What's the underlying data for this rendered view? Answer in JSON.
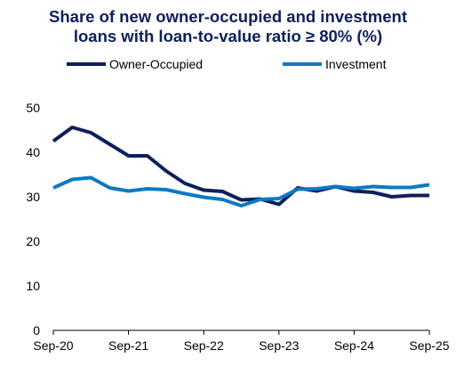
{
  "chart_data": {
    "type": "line",
    "title_lines": [
      "Share of new owner-occupied and investment",
      "loans with loan-to-value ratio ≥ 80% (%)"
    ],
    "xlabel": "",
    "ylabel": "",
    "ylim": [
      0,
      50
    ],
    "yticks": [
      "0",
      "10",
      "20",
      "30",
      "40",
      "50"
    ],
    "x_tick_labels": [
      "Sep-20",
      "Sep-21",
      "Sep-22",
      "Sep-23",
      "Sep-24",
      "Sep-25"
    ],
    "x": [
      "Sep-20",
      "Dec-20",
      "Mar-21",
      "Jun-21",
      "Sep-21",
      "Dec-21",
      "Mar-22",
      "Jun-22",
      "Sep-22",
      "Dec-22",
      "Mar-23",
      "Jun-23",
      "Sep-23",
      "Dec-23",
      "Mar-24",
      "Jun-24",
      "Sep-24",
      "Dec-24",
      "Mar-25",
      "Jun-25",
      "Sep-25"
    ],
    "grid": false,
    "legend_position": "top",
    "series": [
      {
        "name": "Owner-Occupied",
        "color": "#0e1f5b",
        "values": [
          42.5,
          45.6,
          44.4,
          41.8,
          39.2,
          39.2,
          35.8,
          33.0,
          31.5,
          31.2,
          29.3,
          29.5,
          28.3,
          32.0,
          31.3,
          32.3,
          31.3,
          31.0,
          30.0,
          30.3,
          30.3
        ]
      },
      {
        "name": "Investment",
        "color": "#0b7ac4",
        "values": [
          32.0,
          33.9,
          34.3,
          32.0,
          31.3,
          31.8,
          31.6,
          30.7,
          29.9,
          29.4,
          28.0,
          29.4,
          29.6,
          31.7,
          31.8,
          32.3,
          31.9,
          32.3,
          32.1,
          32.1,
          32.7
        ]
      }
    ]
  }
}
